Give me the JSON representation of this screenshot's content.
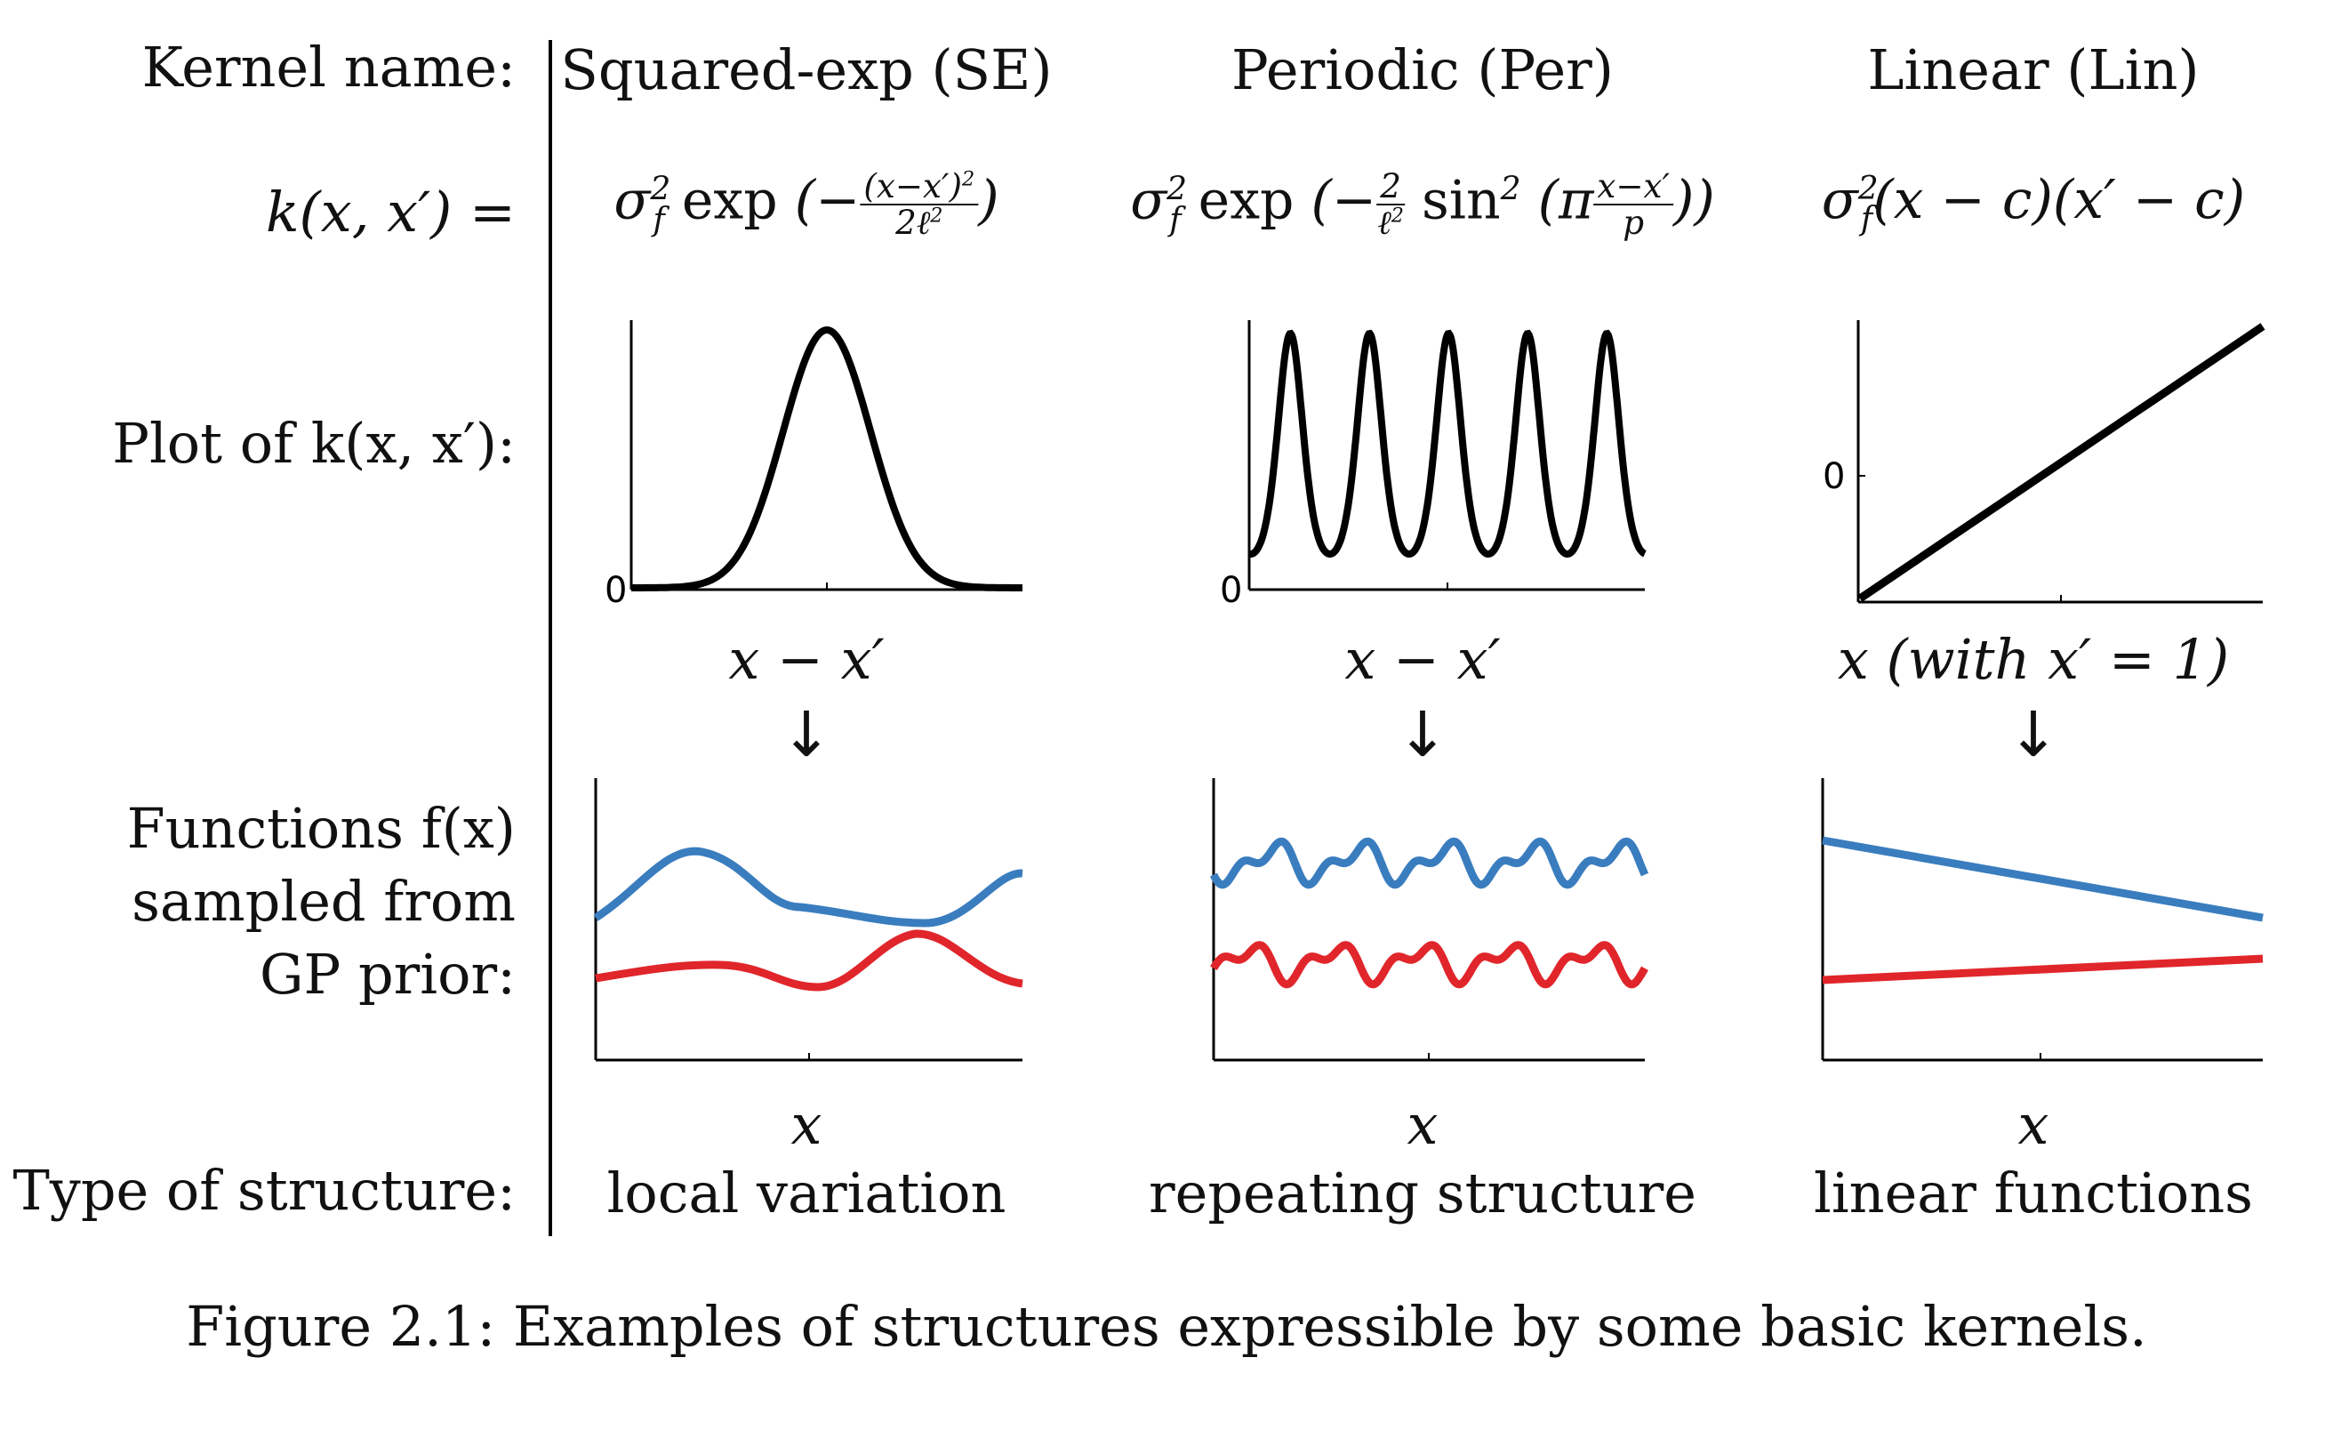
{
  "row_labels": {
    "kernel_name": "Kernel name:",
    "kernel_formula": "k(x, x′) =",
    "plot_of": "Plot of k(x, x′):",
    "functions_line1": "Functions f(x)",
    "functions_line2": "sampled from",
    "functions_line3": "GP prior:",
    "type_of_structure": "Type of structure:"
  },
  "columns": [
    {
      "title": "Squared-exp (SE)",
      "formula": "σ²_f exp(−(x−x′)²/2ℓ²)",
      "plot_xlabel": "x − x′",
      "sample_xlabel": "x",
      "structure": "local variation"
    },
    {
      "title": "Periodic (Per)",
      "formula": "σ²_f exp(−2/ℓ² sin²(π(x−x′)/p))",
      "plot_xlabel": "x − x′",
      "sample_xlabel": "x",
      "structure": "repeating structure"
    },
    {
      "title": "Linear (Lin)",
      "formula": "σ²_f(x − c)(x′ − c)",
      "plot_xlabel": "x (with x′ = 1)",
      "sample_xlabel": "x",
      "structure": "linear functions"
    }
  ],
  "arrow": "↓",
  "zero_tick": "0",
  "caption": "Figure 2.1: Examples of structures expressible by some basic kernels.",
  "colors": {
    "line": "#000000",
    "blue": "#3a7dbf",
    "red": "#e0262b"
  },
  "chart_data": [
    {
      "type": "line",
      "name": "SE kernel plot",
      "shape": "gaussian",
      "x_range": [
        -3,
        3
      ],
      "y_min": 0
    },
    {
      "type": "line",
      "name": "Periodic kernel plot",
      "shape": "periodic",
      "periods_shown": 5,
      "y_min": 0
    },
    {
      "type": "line",
      "name": "Linear kernel plot",
      "shape": "linear-increasing",
      "y_zero_marked": true
    },
    {
      "type": "line",
      "name": "SE samples",
      "series": [
        {
          "color": "blue"
        },
        {
          "color": "red"
        }
      ],
      "smooth": true
    },
    {
      "type": "line",
      "name": "Periodic samples",
      "series": [
        {
          "color": "blue"
        },
        {
          "color": "red"
        }
      ],
      "periodic": true
    },
    {
      "type": "line",
      "name": "Linear samples",
      "series": [
        {
          "color": "blue",
          "slope": "negative"
        },
        {
          "color": "red",
          "slope": "positive"
        }
      ]
    }
  ]
}
